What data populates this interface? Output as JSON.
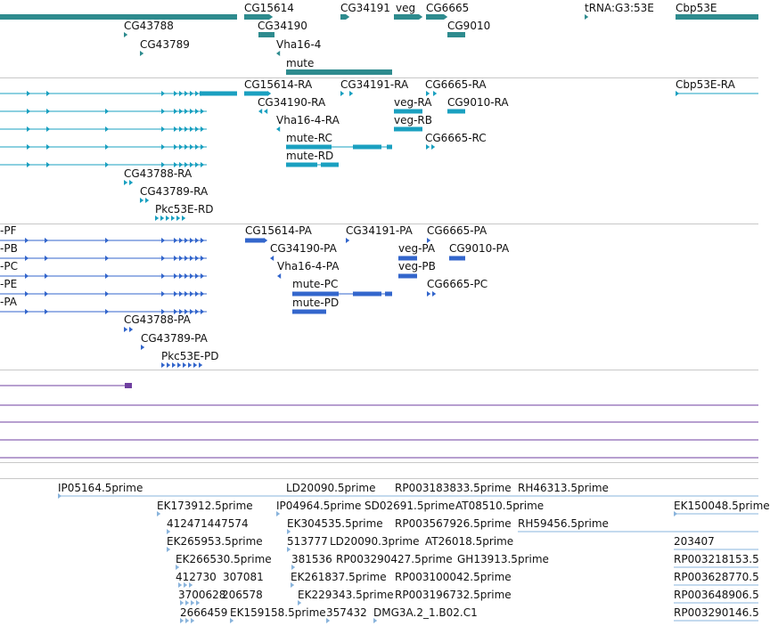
{
  "colors": {
    "gene": "#2e8b8e",
    "mrna": "#1aa0c0",
    "protein": "#3366cc",
    "purple": "#6f3fa0",
    "est": "#8ab4dc",
    "separator": "#c8c8c8"
  },
  "gene_track": {
    "labels": [
      "CG15614",
      "CG34191",
      "veg",
      "CG6665",
      "tRNA:G3:53E",
      "Cbp53E",
      "CG43788",
      "CG34190",
      "CG9010",
      "CG43789",
      "Vha16-4",
      "mute"
    ]
  },
  "mrna_track": {
    "labels": [
      "CG15614-RA",
      "CG34191-RA",
      "CG6665-RA",
      "Cbp53E-RA",
      "CG34190-RA",
      "veg-RA",
      "CG9010-RA",
      "Vha16-4-RA",
      "veg-RB",
      "mute-RC",
      "CG6665-RC",
      "mute-RD",
      "CG43788-RA",
      "CG43789-RA",
      "Pkc53E-RD"
    ]
  },
  "protein_track": {
    "labels": [
      "-PF",
      "-PB",
      "-PC",
      "-PE",
      "-PA",
      "CG15614-PA",
      "CG34191-PA",
      "CG6665-PA",
      "CG34190-PA",
      "CG9010-PA",
      "Vha16-4-PA",
      "veg-PA",
      "veg-PB",
      "mute-PC",
      "CG6665-PC",
      "mute-PD",
      "CG43788-PA",
      "CG43789-PA",
      "Pkc53E-PD"
    ]
  },
  "est_track": {
    "labels": [
      "IP05164.5prime",
      "LD20090.5prime",
      "RP003183833.5prime",
      "RH46313.5prime",
      "EK173912.5prime",
      "IP04964.5prime",
      "SD02691.5prime",
      "AT08510.5prime",
      "EK150048.5prime",
      "412471447574",
      "EK304535.5prime",
      "RP003567926.5prime",
      "RH59456.5prime",
      "EK265953.5prime",
      "513777",
      "LD20090.3prime",
      "AT26018.5prime",
      "203407",
      "EK266530.5prime",
      "381536",
      "RP003290427.5prime",
      "GH13913.5prime",
      "RP003218153.5",
      "412730",
      "307081",
      "EK261837.5prime",
      "RP003100042.5prime",
      "RP003628770.5",
      "3700628",
      "206578",
      "EK229343.5prime",
      "RP003196732.5prime",
      "RP003648906.5",
      "2666459",
      "EK159158.5prime",
      "357432",
      "DMG3A.2_1.B02.C1",
      "RP003290146.5"
    ]
  }
}
